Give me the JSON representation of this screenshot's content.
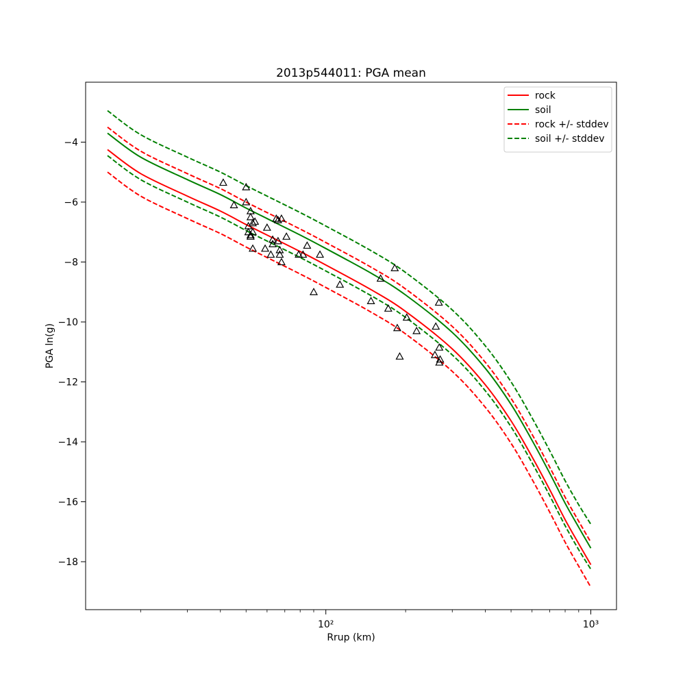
{
  "chart_data": {
    "type": "line",
    "title": "2013p544011: PGA mean",
    "xlabel": "Rrup (km)",
    "ylabel": "PGA ln(g)",
    "xscale": "log",
    "xlim": [
      12.4,
      1250
    ],
    "ylim": [
      -19.6,
      -2.0
    ],
    "grid": false,
    "legend_position": "top-right",
    "xticks": [
      {
        "value": 100,
        "label": "10²"
      },
      {
        "value": 1000,
        "label": "10³"
      }
    ],
    "xminor_ticks": [
      20,
      30,
      40,
      50,
      60,
      70,
      80,
      90,
      200,
      300,
      400,
      500,
      600,
      700,
      800,
      900
    ],
    "yticks": [
      -4,
      -6,
      -8,
      -10,
      -12,
      -14,
      -16,
      -18
    ],
    "series": [
      {
        "name": "rock",
        "color": "#ff0000",
        "style": "solid",
        "x": [
          15,
          20,
          30,
          40,
          50,
          60,
          80,
          100,
          150,
          200,
          300,
          400,
          500,
          600,
          700,
          800,
          900,
          1000
        ],
        "y": [
          -4.25,
          -5.05,
          -5.8,
          -6.3,
          -6.75,
          -7.1,
          -7.65,
          -8.1,
          -8.95,
          -9.65,
          -10.9,
          -12.1,
          -13.3,
          -14.5,
          -15.6,
          -16.6,
          -17.4,
          -18.1
        ]
      },
      {
        "name": "soil",
        "color": "#008000",
        "style": "solid",
        "x": [
          15,
          20,
          30,
          40,
          50,
          60,
          80,
          100,
          150,
          200,
          300,
          400,
          500,
          600,
          700,
          800,
          900,
          1000
        ],
        "y": [
          -3.7,
          -4.5,
          -5.25,
          -5.75,
          -6.2,
          -6.55,
          -7.1,
          -7.55,
          -8.4,
          -9.1,
          -10.35,
          -11.55,
          -12.75,
          -13.95,
          -15.05,
          -16.05,
          -16.85,
          -17.55
        ]
      },
      {
        "name": "rock +/- stddev",
        "color": "#ff0000",
        "style": "dashed",
        "x": [
          15,
          20,
          30,
          40,
          50,
          60,
          80,
          100,
          150,
          200,
          300,
          400,
          500,
          600,
          700,
          800,
          900,
          1000
        ],
        "y": [
          -3.5,
          -4.3,
          -5.05,
          -5.55,
          -6.0,
          -6.35,
          -6.9,
          -7.35,
          -8.2,
          -8.9,
          -10.15,
          -11.35,
          -12.55,
          -13.75,
          -14.85,
          -15.85,
          -16.65,
          -17.35
        ]
      },
      {
        "name": "",
        "color": "#ff0000",
        "style": "dashed",
        "x": [
          15,
          20,
          30,
          40,
          50,
          60,
          80,
          100,
          150,
          200,
          300,
          400,
          500,
          600,
          700,
          800,
          900,
          1000
        ],
        "y": [
          -5.0,
          -5.8,
          -6.55,
          -7.05,
          -7.5,
          -7.85,
          -8.4,
          -8.85,
          -9.7,
          -10.4,
          -11.65,
          -12.85,
          -14.05,
          -15.25,
          -16.35,
          -17.35,
          -18.15,
          -18.85
        ]
      },
      {
        "name": "soil +/- stddev",
        "color": "#008000",
        "style": "dashed",
        "x": [
          15,
          20,
          30,
          40,
          50,
          60,
          80,
          100,
          150,
          200,
          300,
          400,
          500,
          600,
          700,
          800,
          900,
          1000
        ],
        "y": [
          -2.95,
          -3.75,
          -4.5,
          -5.0,
          -5.45,
          -5.8,
          -6.35,
          -6.8,
          -7.65,
          -8.35,
          -9.6,
          -10.8,
          -12.0,
          -13.2,
          -14.3,
          -15.3,
          -16.1,
          -16.75
        ]
      },
      {
        "name": "",
        "color": "#008000",
        "style": "dashed",
        "x": [
          15,
          20,
          30,
          40,
          50,
          60,
          80,
          100,
          150,
          200,
          300,
          400,
          500,
          600,
          700,
          800,
          900,
          1000
        ],
        "y": [
          -4.45,
          -5.25,
          -6.0,
          -6.5,
          -6.95,
          -7.3,
          -7.85,
          -8.3,
          -9.15,
          -9.85,
          -11.1,
          -12.3,
          -13.5,
          -14.7,
          -15.8,
          -16.8,
          -17.6,
          -18.25
        ]
      }
    ],
    "observations": {
      "marker": "open-triangle",
      "color": "#000000",
      "points": [
        {
          "x": 41,
          "y": -5.35
        },
        {
          "x": 45,
          "y": -6.1
        },
        {
          "x": 50,
          "y": -5.5
        },
        {
          "x": 50,
          "y": -6.0
        },
        {
          "x": 52,
          "y": -6.5
        },
        {
          "x": 52,
          "y": -6.3
        },
        {
          "x": 53,
          "y": -6.7
        },
        {
          "x": 54,
          "y": -6.65
        },
        {
          "x": 52,
          "y": -7.1
        },
        {
          "x": 51,
          "y": -6.8
        },
        {
          "x": 52,
          "y": -7.15
        },
        {
          "x": 53,
          "y": -7.0
        },
        {
          "x": 51,
          "y": -7.0
        },
        {
          "x": 53,
          "y": -7.55
        },
        {
          "x": 59,
          "y": -7.55
        },
        {
          "x": 60,
          "y": -6.85
        },
        {
          "x": 62,
          "y": -7.75
        },
        {
          "x": 63,
          "y": -7.4
        },
        {
          "x": 63,
          "y": -7.25
        },
        {
          "x": 65,
          "y": -6.55
        },
        {
          "x": 66,
          "y": -6.6
        },
        {
          "x": 66,
          "y": -7.3
        },
        {
          "x": 67,
          "y": -7.6
        },
        {
          "x": 67,
          "y": -7.75
        },
        {
          "x": 68,
          "y": -6.55
        },
        {
          "x": 68,
          "y": -8.0
        },
        {
          "x": 71,
          "y": -7.15
        },
        {
          "x": 79,
          "y": -7.75
        },
        {
          "x": 82,
          "y": -7.75
        },
        {
          "x": 85,
          "y": -7.45
        },
        {
          "x": 90,
          "y": -9.0
        },
        {
          "x": 95,
          "y": -7.75
        },
        {
          "x": 113,
          "y": -8.75
        },
        {
          "x": 148,
          "y": -9.3
        },
        {
          "x": 161,
          "y": -8.55
        },
        {
          "x": 172,
          "y": -9.55
        },
        {
          "x": 182,
          "y": -8.2
        },
        {
          "x": 186,
          "y": -10.2
        },
        {
          "x": 190,
          "y": -11.15
        },
        {
          "x": 202,
          "y": -9.85
        },
        {
          "x": 220,
          "y": -10.3
        },
        {
          "x": 258,
          "y": -11.1
        },
        {
          "x": 260,
          "y": -10.15
        },
        {
          "x": 267,
          "y": -9.35
        },
        {
          "x": 268,
          "y": -10.85
        },
        {
          "x": 268,
          "y": -11.35
        },
        {
          "x": 270,
          "y": -11.25
        }
      ]
    }
  }
}
